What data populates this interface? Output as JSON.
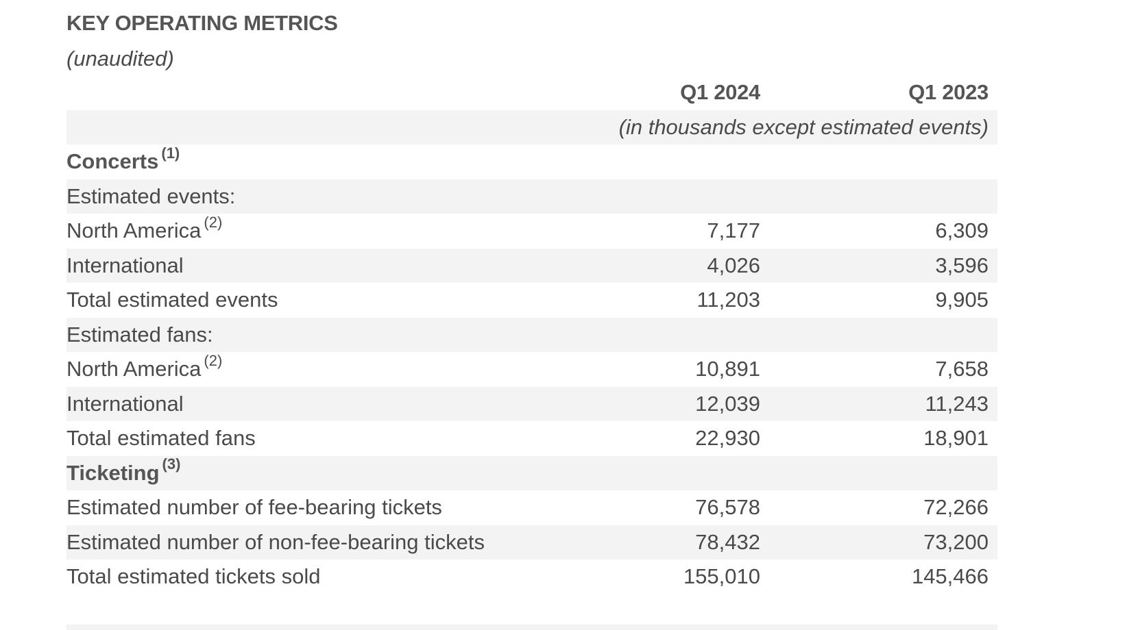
{
  "title": "KEY OPERATING METRICS",
  "subtitle": "(unaudited)",
  "columns": {
    "col1": "Q1 2024",
    "col2": "Q1 2023",
    "units": "(in thousands except estimated events)"
  },
  "sections": {
    "concerts": {
      "label": "Concerts",
      "note": "(1)"
    },
    "estimated_events": {
      "label": "Estimated events:"
    },
    "events_na": {
      "label": "North America",
      "note": "(2)",
      "q1_2024": "7,177",
      "q1_2023": "6,309"
    },
    "events_intl": {
      "label": "International",
      "q1_2024": "4,026",
      "q1_2023": "3,596"
    },
    "events_total": {
      "label": "Total estimated events",
      "q1_2024": "11,203",
      "q1_2023": "9,905"
    },
    "estimated_fans": {
      "label": "Estimated fans:"
    },
    "fans_na": {
      "label": "North America",
      "note": "(2)",
      "q1_2024": "10,891",
      "q1_2023": "7,658"
    },
    "fans_intl": {
      "label": "International",
      "q1_2024": "12,039",
      "q1_2023": "11,243"
    },
    "fans_total": {
      "label": "Total estimated fans",
      "q1_2024": "22,930",
      "q1_2023": "18,901"
    },
    "ticketing": {
      "label": "Ticketing",
      "note": "(3)"
    },
    "tickets_fee": {
      "label": "Estimated number of fee-bearing tickets",
      "q1_2024": "76,578",
      "q1_2023": "72,266"
    },
    "tickets_nonfee": {
      "label": "Estimated number of non-fee-bearing tickets",
      "q1_2024": "78,432",
      "q1_2023": "73,200"
    },
    "tickets_total": {
      "label": "Total estimated tickets sold",
      "q1_2024": "155,010",
      "q1_2023": "145,466"
    }
  },
  "colors": {
    "text": "#4a4a4a",
    "heading": "#555555",
    "row_shade": "#f3f3f3"
  }
}
